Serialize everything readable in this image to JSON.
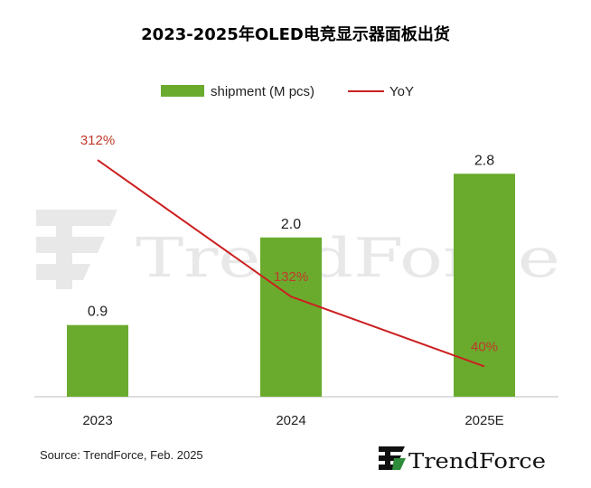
{
  "chart_data": {
    "type": "bar",
    "title": "2023-2025年OLED电竞显示器面板出货",
    "categories": [
      "2023",
      "2024",
      "2025E"
    ],
    "series": [
      {
        "name": "shipment (M pcs)",
        "type": "bar",
        "values": [
          0.9,
          2.0,
          2.8
        ],
        "labels": [
          "0.9",
          "2.0",
          "2.8"
        ],
        "color": "#6aab2e"
      },
      {
        "name": "YoY",
        "type": "line",
        "values": [
          312,
          132,
          40
        ],
        "labels": [
          "312%",
          "132%",
          "40%"
        ],
        "color": "#cc1f1f"
      }
    ],
    "ylim": [
      0,
      3.2
    ],
    "y2lim": [
      0,
      380
    ],
    "grid": false,
    "legend": "top-center",
    "source": "Source: TrendForce, Feb. 2025",
    "watermark": "TrendForce",
    "logo_text": "TrendForce"
  }
}
